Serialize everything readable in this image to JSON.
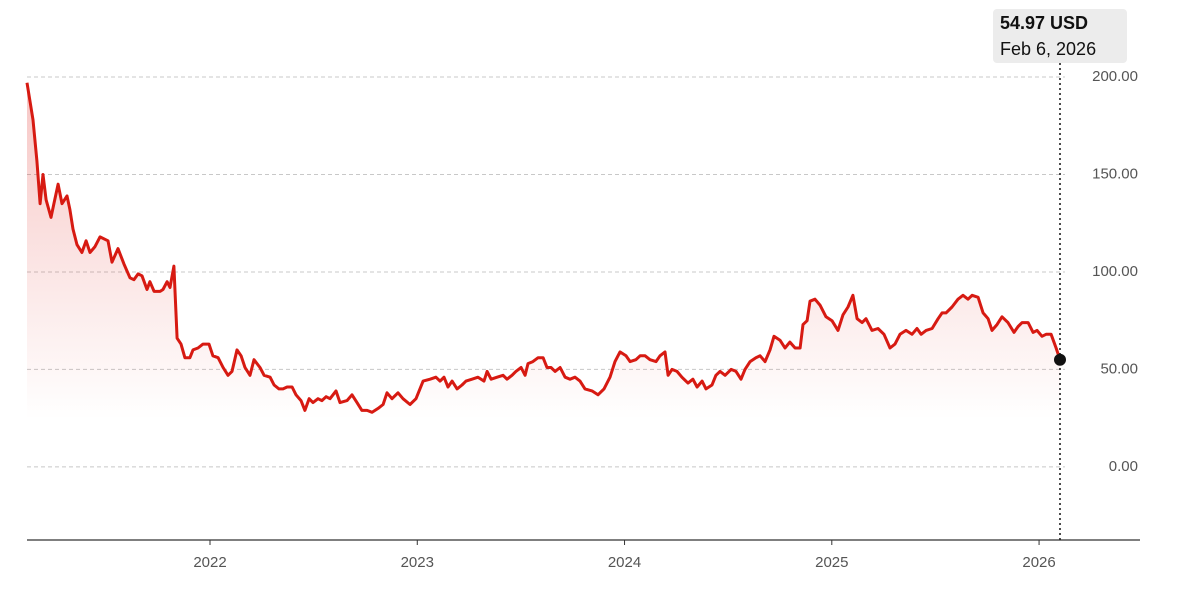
{
  "chart_data": {
    "type": "line",
    "color": "#d71a12",
    "tooltip": {
      "label": "54.97 USD",
      "date": "Feb 6, 2026"
    },
    "xlim": [
      2021.117,
      2026.487
    ],
    "xticks": [
      2022,
      2023,
      2024,
      2025,
      2026
    ],
    "ylim": [
      -37.5,
      200
    ],
    "yticks": [
      {
        "value": 0,
        "label": "0.00"
      },
      {
        "value": 50,
        "label": "50.00"
      },
      {
        "value": 100,
        "label": "100.00"
      },
      {
        "value": 150,
        "label": "150.00"
      },
      {
        "value": 200,
        "label": "200.00"
      }
    ],
    "grid": true,
    "x": [
      2021.117,
      2021.146,
      2021.165,
      2021.18,
      2021.194,
      2021.209,
      2021.233,
      2021.247,
      2021.267,
      2021.286,
      2021.31,
      2021.324,
      2021.339,
      2021.358,
      2021.382,
      2021.402,
      2021.421,
      2021.445,
      2021.469,
      2021.508,
      2021.527,
      2021.556,
      2021.585,
      2021.614,
      2021.633,
      2021.653,
      2021.672,
      2021.696,
      2021.71,
      2021.73,
      2021.759,
      2021.773,
      2021.793,
      2021.807,
      2021.826,
      2021.841,
      2021.86,
      2021.879,
      2021.903,
      2021.918,
      2021.942,
      2021.966,
      2021.995,
      2022.014,
      2022.039,
      2022.063,
      2022.087,
      2022.106,
      2022.13,
      2022.15,
      2022.169,
      2022.193,
      2022.212,
      2022.241,
      2022.261,
      2022.29,
      2022.309,
      2022.333,
      2022.352,
      2022.372,
      2022.396,
      2022.415,
      2022.439,
      2022.458,
      2022.478,
      2022.497,
      2022.521,
      2022.54,
      2022.56,
      2022.579,
      2022.608,
      2022.627,
      2022.661,
      2022.685,
      2022.709,
      2022.733,
      2022.758,
      2022.782,
      2022.811,
      2022.835,
      2022.854,
      2022.878,
      2022.907,
      2022.931,
      2022.965,
      2022.994,
      2023.028,
      2023.062,
      2023.09,
      2023.11,
      2023.129,
      2023.148,
      2023.168,
      2023.192,
      2023.216,
      2023.235,
      2023.264,
      2023.293,
      2023.322,
      2023.337,
      2023.356,
      2023.385,
      2023.414,
      2023.433,
      2023.457,
      2023.476,
      2023.501,
      2023.52,
      2023.534,
      2023.558,
      2023.583,
      2023.607,
      2023.626,
      2023.645,
      2023.665,
      2023.689,
      2023.713,
      2023.737,
      2023.761,
      2023.785,
      2023.809,
      2023.843,
      2023.872,
      2023.901,
      2023.93,
      2023.954,
      2023.978,
      2024.007,
      2024.027,
      2024.055,
      2024.075,
      2024.099,
      2024.123,
      2024.152,
      2024.171,
      2024.195,
      2024.21,
      2024.229,
      2024.253,
      2024.277,
      2024.306,
      2024.33,
      2024.35,
      2024.374,
      2024.393,
      2024.422,
      2024.441,
      2024.461,
      2024.485,
      2024.514,
      2024.538,
      2024.562,
      2024.581,
      2024.606,
      2024.634,
      2024.654,
      2024.678,
      2024.702,
      2024.721,
      2024.75,
      2024.774,
      2024.798,
      2024.823,
      2024.847,
      2024.861,
      2024.881,
      2024.895,
      2024.919,
      2024.943,
      2024.972,
      2025.001,
      2025.03,
      2025.054,
      2025.078,
      2025.102,
      2025.122,
      2025.146,
      2025.165,
      2025.194,
      2025.223,
      2025.252,
      2025.281,
      2025.305,
      2025.329,
      2025.358,
      2025.387,
      2025.411,
      2025.431,
      2025.455,
      2025.484,
      2025.513,
      2025.532,
      2025.551,
      2025.58,
      2025.609,
      2025.633,
      2025.657,
      2025.677,
      2025.706,
      2025.73,
      2025.754,
      2025.773,
      2025.797,
      2025.821,
      2025.85,
      2025.879,
      2025.899,
      2025.918,
      2025.947,
      2025.971,
      2025.99,
      2026.014,
      2026.034,
      2026.058,
      2026.082,
      2026.101
    ],
    "values": [
      197,
      178,
      157,
      135,
      150,
      137,
      128,
      135,
      145,
      135,
      139,
      132,
      122,
      114,
      110,
      116,
      110,
      113,
      118,
      116,
      105,
      112,
      104,
      97,
      96,
      99,
      98,
      91,
      95,
      90,
      90,
      91,
      95,
      92,
      103,
      66,
      63,
      56,
      56,
      60,
      61,
      63,
      63,
      57,
      56,
      51,
      47,
      49,
      60,
      57,
      51,
      47,
      55,
      51,
      47,
      46,
      42,
      40,
      40,
      41,
      41,
      37,
      34,
      29,
      35,
      33,
      35,
      34,
      36,
      35,
      39,
      33,
      34,
      37,
      33,
      29,
      29,
      28,
      30,
      32,
      38,
      35,
      38,
      35,
      32,
      35,
      44,
      45,
      46,
      44,
      46,
      41,
      44,
      40,
      42,
      44,
      45,
      46,
      44,
      49,
      45,
      46,
      47,
      45,
      47,
      49,
      51,
      47,
      53,
      54,
      56,
      56,
      51,
      51,
      49,
      51,
      46,
      45,
      46,
      44,
      40,
      39,
      37,
      40,
      46,
      54,
      59,
      57,
      54,
      55,
      57,
      57,
      55,
      54,
      57,
      59,
      47,
      50,
      49,
      46,
      43,
      45,
      41,
      44,
      40,
      42,
      47,
      49,
      47,
      50,
      49,
      45,
      50,
      54,
      56,
      57,
      54,
      60,
      67,
      65,
      61,
      64,
      61,
      61,
      73,
      75,
      85,
      86,
      83,
      77,
      75,
      70,
      78,
      82,
      88,
      76,
      74,
      76,
      70,
      71,
      68,
      61,
      63,
      68,
      70,
      68,
      71,
      68,
      70,
      71,
      76,
      79,
      79,
      82,
      86,
      88,
      86,
      88,
      87,
      79,
      76,
      70,
      73,
      77,
      74,
      69,
      72,
      74,
      74,
      69,
      70,
      67,
      68,
      68,
      61,
      54.97
    ]
  }
}
